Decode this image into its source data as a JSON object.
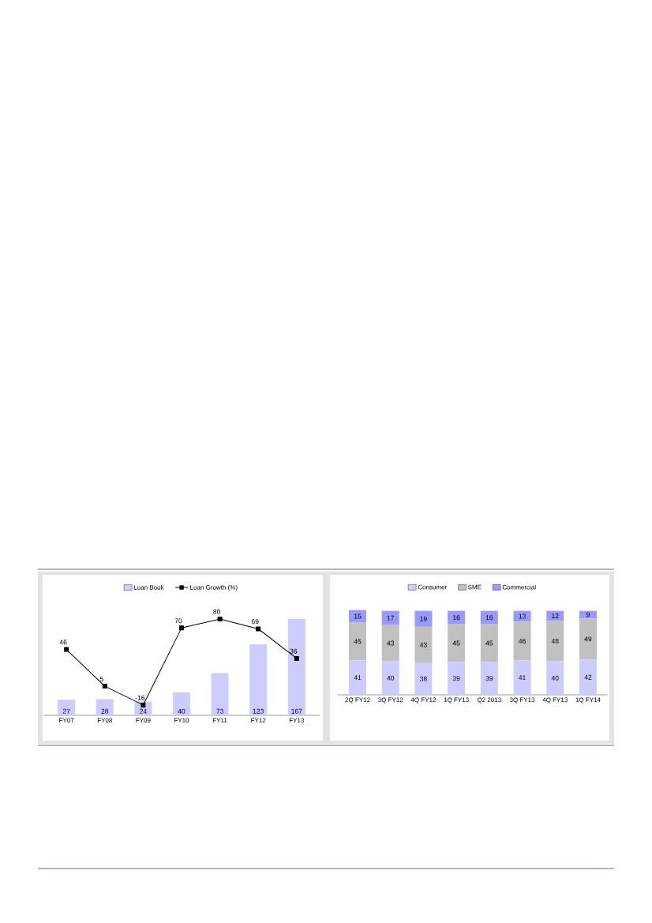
{
  "chart_data": [
    {
      "type": "bar",
      "categories": [
        "FY07",
        "FY08",
        "FY09",
        "FY10",
        "FY11",
        "FY12",
        "FY13"
      ],
      "series": [
        {
          "name": "Loan Book",
          "color": "#ccccff",
          "values": [
            27,
            28,
            24,
            40,
            73,
            123,
            167
          ]
        },
        {
          "name": "Loan Growth (%)",
          "type": "line",
          "axis": "y2",
          "color": "#000000",
          "marker": "square",
          "values": [
            46,
            5,
            -16,
            70,
            80,
            69,
            36
          ]
        }
      ],
      "data_labels": true,
      "legend": "top",
      "tick_labels": "x"
    },
    {
      "type": "bar",
      "stacked": true,
      "categories": [
        "2Q FY12",
        "3Q FY12",
        "4Q FY12",
        "1Q FY13",
        "Q2 2013",
        "3Q FY13",
        "4Q FY13",
        "1Q FY14"
      ],
      "series": [
        {
          "name": "Consumer",
          "color": "#ccccff",
          "values": [
            41,
            40,
            38,
            39,
            39,
            41,
            40,
            42
          ]
        },
        {
          "name": "SME",
          "color": "#c0c0c0",
          "values": [
            45,
            43,
            43,
            45,
            45,
            46,
            48,
            49
          ]
        },
        {
          "name": "Commercial",
          "color": "#9999ff",
          "values": [
            15,
            17,
            19,
            16,
            16,
            13,
            12,
            9
          ]
        }
      ],
      "data_labels": true,
      "legend": "top",
      "tick_labels": "x"
    }
  ]
}
